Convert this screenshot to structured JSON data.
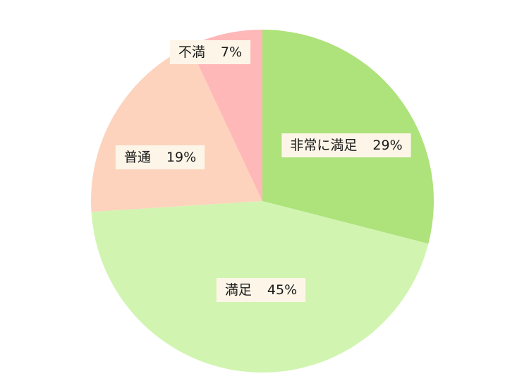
{
  "chart_data": {
    "type": "pie",
    "title": "",
    "start": "12 o'clock, clockwise",
    "slices": [
      {
        "label": "非常に満足",
        "value": 29,
        "value_text": "29%",
        "color": "#aee27a"
      },
      {
        "label": "満足",
        "value": 45,
        "value_text": "45%",
        "color": "#d1f5b0"
      },
      {
        "label": "普通",
        "value": 19,
        "value_text": "19%",
        "color": "#fdd3bd"
      },
      {
        "label": "不満",
        "value": 7,
        "value_text": "7%",
        "color": "#ffb8b8"
      }
    ],
    "label_box_color": "#fdf6e8",
    "legend": "none"
  }
}
